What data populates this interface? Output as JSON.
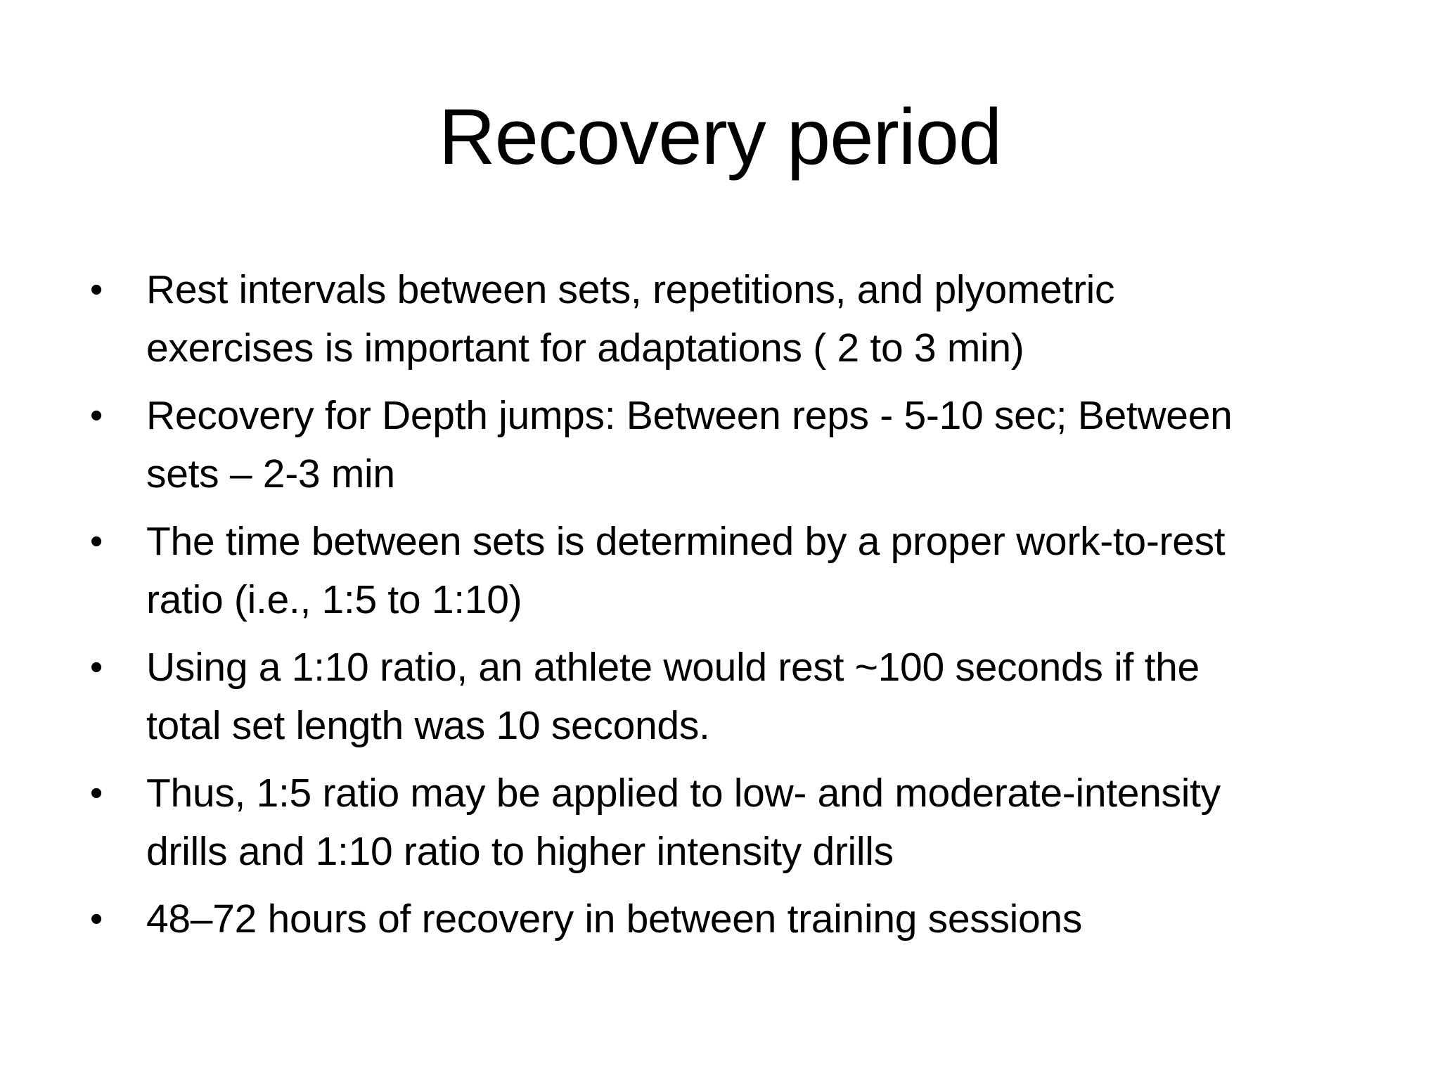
{
  "slide": {
    "title": "Recovery period",
    "bullet_char": "•",
    "bullets": [
      {
        "lines": [
          "Rest intervals between sets, repetitions, and plyometric",
          "exercises is important for adaptations ( 2 to 3 min)"
        ]
      },
      {
        "lines": [
          "Recovery for Depth jumps: Between reps - 5-10 sec; Between",
          "sets – 2-3 min"
        ]
      },
      {
        "lines": [
          "The time between sets is determined by a proper work-to-rest",
          "ratio (i.e., 1:5 to 1:10)"
        ]
      },
      {
        "lines": [
          "Using a 1:10 ratio, an athlete would rest ~100 seconds if the",
          "total set length was 10 seconds."
        ]
      },
      {
        "lines": [
          "Thus, 1:5 ratio may be applied to low- and moderate-intensity",
          "drills and 1:10 ratio to higher intensity drills"
        ]
      },
      {
        "lines": [
          "48–72 hours of recovery in between training sessions"
        ]
      }
    ]
  }
}
